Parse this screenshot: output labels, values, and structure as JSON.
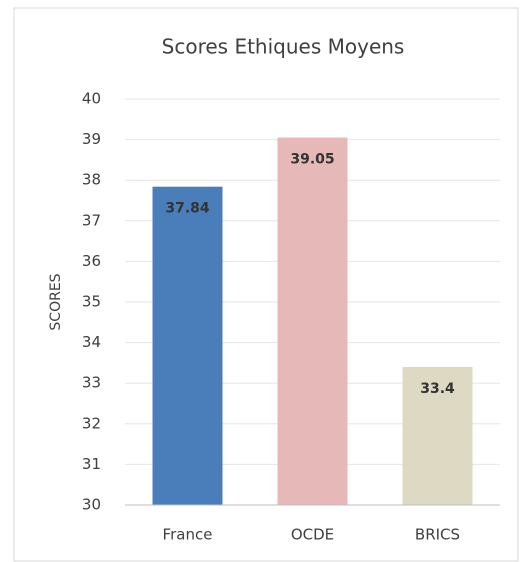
{
  "chart_data": {
    "type": "bar",
    "title": "Scores Ethiques Moyens",
    "y_label": "SCORES",
    "categories": [
      "France",
      "OCDE",
      "BRICS"
    ],
    "values": [
      37.84,
      39.05,
      33.4
    ],
    "colors": [
      "#4a7ebb",
      "#e6b8b7",
      "#ddd9c3"
    ],
    "ylim": [
      30,
      40
    ],
    "yticks": [
      30,
      31,
      32,
      33,
      34,
      35,
      36,
      37,
      38,
      39,
      40
    ],
    "grid": true
  }
}
